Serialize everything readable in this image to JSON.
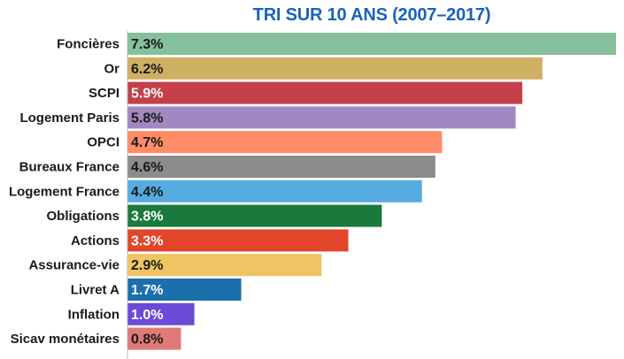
{
  "chart_data": {
    "type": "bar",
    "orientation": "horizontal",
    "title": "TRI SUR 10 ANS (2007–2017)",
    "xlabel": "",
    "ylabel": "",
    "xlim": [
      0,
      7.3
    ],
    "grid": false,
    "categories": [
      "Foncières",
      "Or",
      "SCPI",
      "Logement Paris",
      "OPCI",
      "Bureaux France",
      "Logement France",
      "Obligations",
      "Actions",
      "Assurance-vie",
      "Livret A",
      "Inflation",
      "Sicav monétaires"
    ],
    "values": [
      7.3,
      6.2,
      5.9,
      5.8,
      4.7,
      4.6,
      4.4,
      3.8,
      3.3,
      2.9,
      1.7,
      1.0,
      0.8
    ],
    "value_labels": [
      "7.3%",
      "6.2%",
      "5.9%",
      "5.8%",
      "4.7%",
      "4.6%",
      "4.4%",
      "3.8%",
      "3.3%",
      "2.9%",
      "1.7%",
      "1.0%",
      "0.8%"
    ],
    "colors": [
      "#85bf9b",
      "#cfb062",
      "#c43f48",
      "#a188c0",
      "#ff8c66",
      "#8c8c8c",
      "#56ace0",
      "#1a7a3e",
      "#e3452b",
      "#f0c462",
      "#1b6fab",
      "#6a4ad6",
      "#e07a78"
    ],
    "label_colors": [
      "#1a1a1a",
      "#1a1a1a",
      "#ffffff",
      "#1a1a1a",
      "#1a1a1a",
      "#1a1a1a",
      "#1a1a1a",
      "#ffffff",
      "#ffffff",
      "#1a1a1a",
      "#ffffff",
      "#ffffff",
      "#1a1a1a"
    ]
  }
}
